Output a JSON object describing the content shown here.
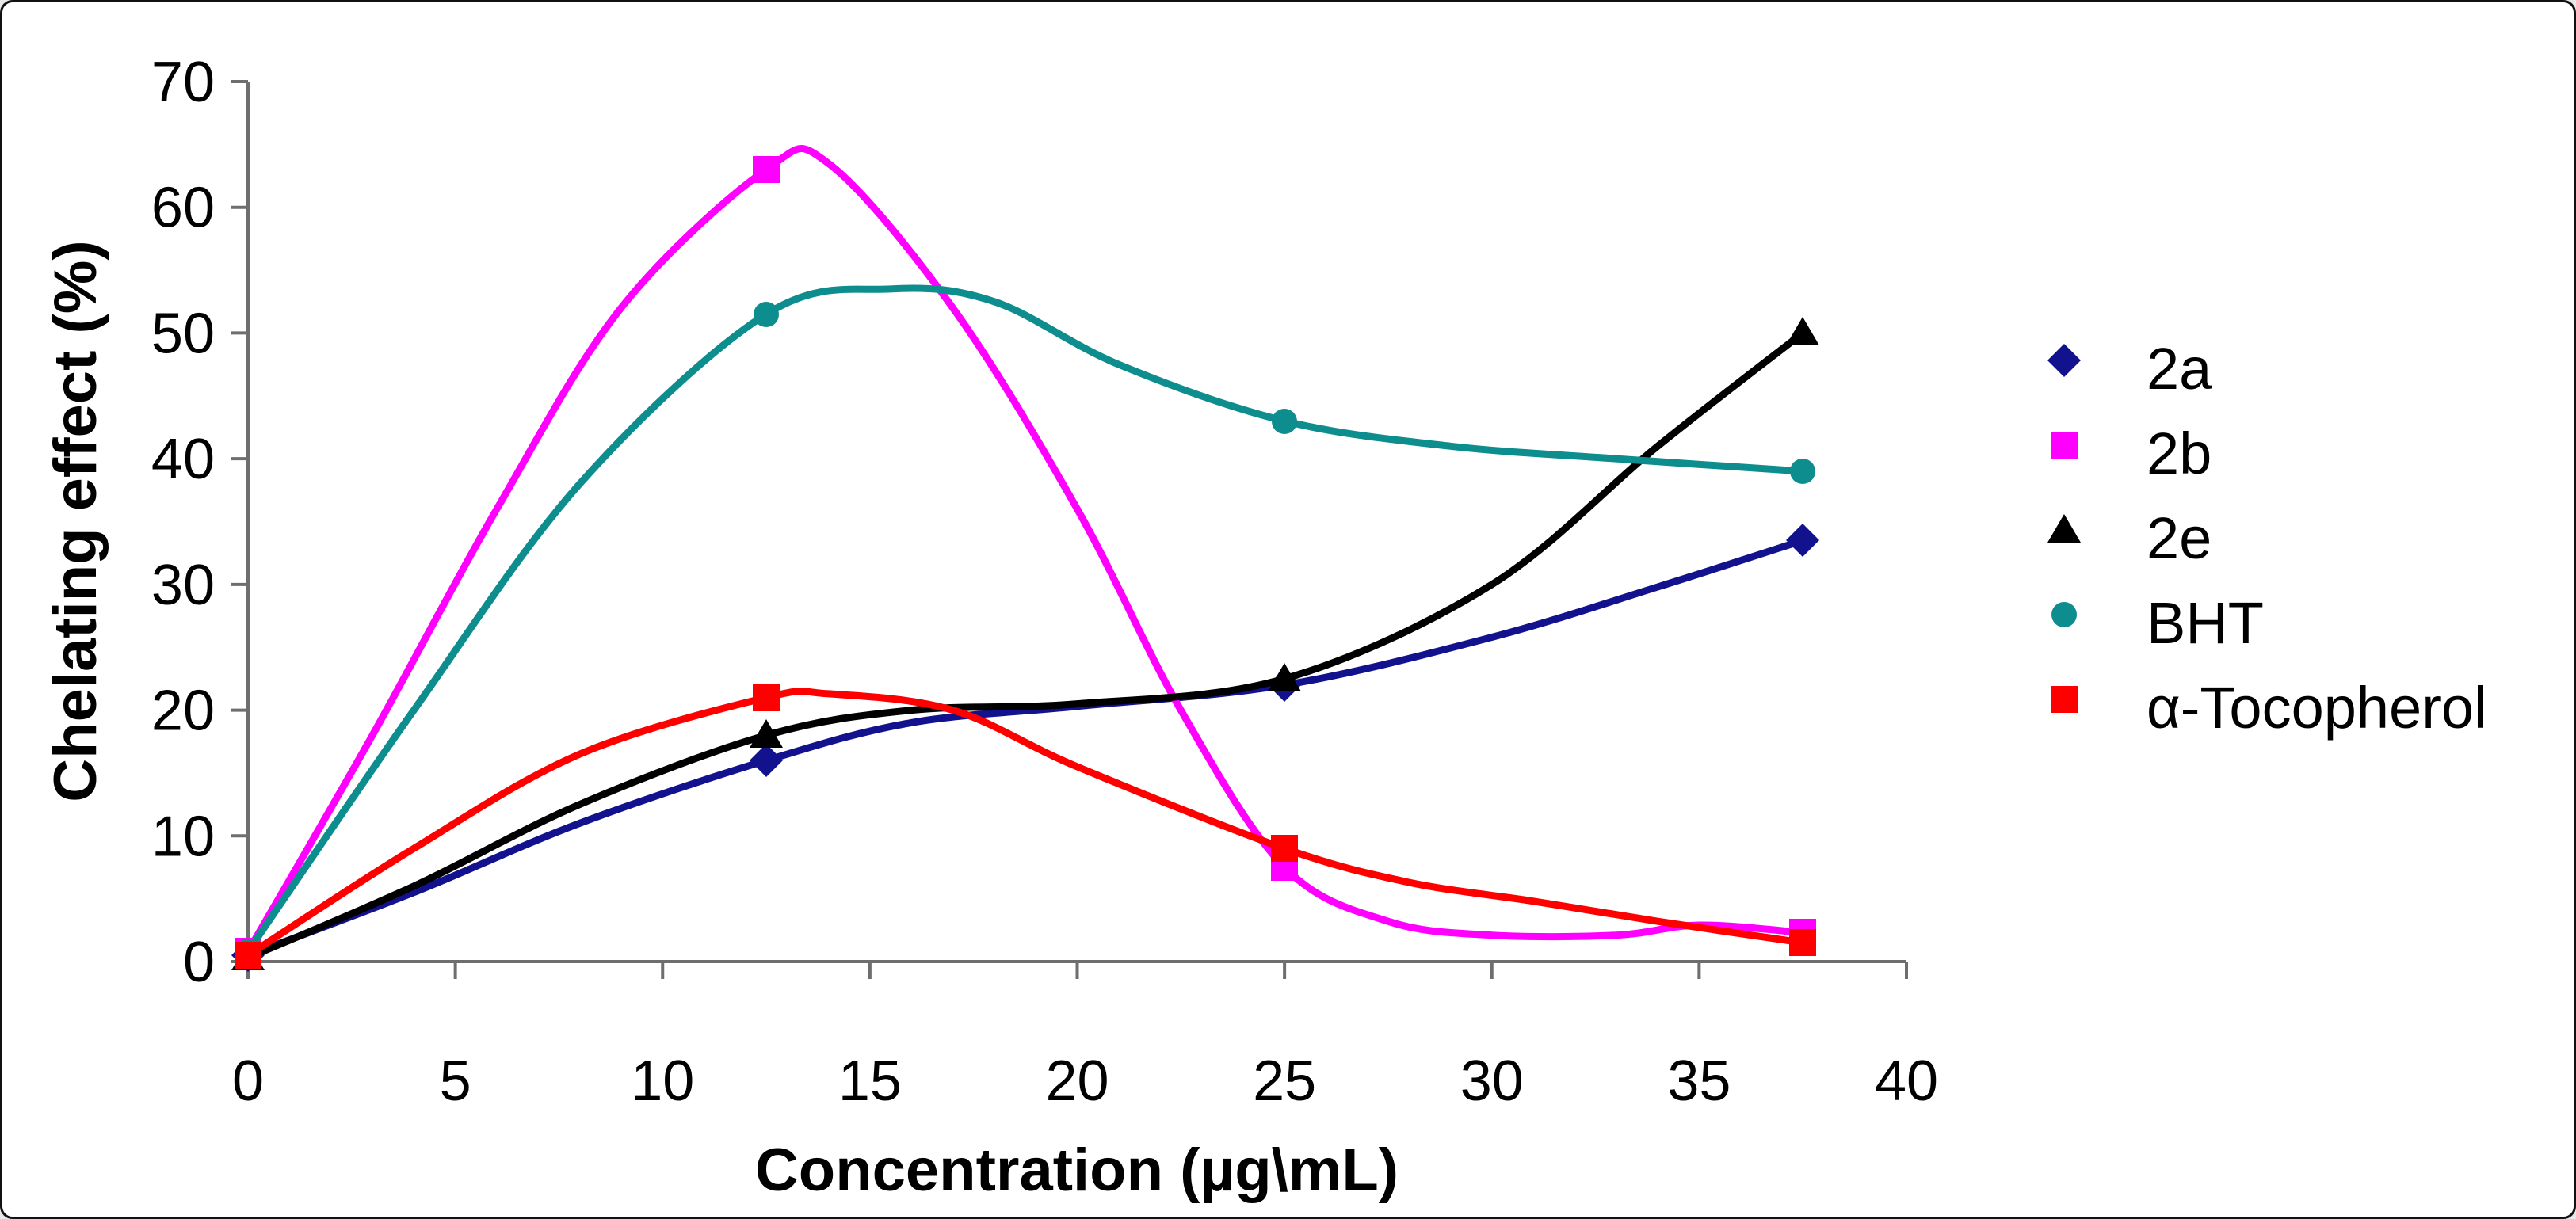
{
  "figure": {
    "background": "#ffffff",
    "border_color": "#111111",
    "axis_color": "#6e6e6e"
  },
  "chart_data": {
    "type": "line",
    "title": "",
    "xlabel": "Concentration (µg\\mL)",
    "ylabel": "Chelating effect (%)",
    "xlim": [
      0,
      40
    ],
    "ylim": [
      0,
      70
    ],
    "x_ticks": [
      0,
      5,
      10,
      15,
      20,
      25,
      30,
      35,
      40
    ],
    "y_ticks": [
      0,
      10,
      20,
      30,
      40,
      50,
      60,
      70
    ],
    "grid": false,
    "legend_position": "right",
    "series": [
      {
        "name": "2a",
        "color": "#12128E",
        "marker": "diamond",
        "x": [
          0,
          12.5,
          25,
          37.5
        ],
        "y": [
          0.5,
          16,
          22,
          33.5
        ],
        "curve": [
          [
            0,
            0.5
          ],
          [
            4,
            5.5
          ],
          [
            8,
            11
          ],
          [
            12.5,
            16
          ],
          [
            16,
            19
          ],
          [
            20,
            20.3
          ],
          [
            25,
            22
          ],
          [
            30,
            25.8
          ],
          [
            34,
            29.8
          ],
          [
            37.5,
            33.5
          ]
        ]
      },
      {
        "name": "2b",
        "color": "#FF00FF",
        "marker": "square",
        "x": [
          0,
          12.5,
          25,
          37.5
        ],
        "y": [
          0.8,
          63,
          7.5,
          2.3
        ],
        "curve": [
          [
            0,
            0.8
          ],
          [
            3,
            18
          ],
          [
            6,
            36
          ],
          [
            9,
            52
          ],
          [
            12.5,
            63
          ],
          [
            14,
            63.5
          ],
          [
            17,
            52
          ],
          [
            20,
            36
          ],
          [
            22.5,
            20
          ],
          [
            25,
            7.5
          ],
          [
            27.5,
            3.2
          ],
          [
            30,
            2.1
          ],
          [
            33,
            2.1
          ],
          [
            35,
            2.9
          ],
          [
            37.5,
            2.3
          ]
        ]
      },
      {
        "name": "2e",
        "color": "#000000",
        "marker": "triangle",
        "x": [
          0,
          12.5,
          25,
          37.5
        ],
        "y": [
          0.3,
          18,
          22.5,
          50
        ],
        "curve": [
          [
            0,
            0.3
          ],
          [
            4,
            6
          ],
          [
            8,
            12.5
          ],
          [
            12.5,
            18
          ],
          [
            16,
            20
          ],
          [
            20,
            20.5
          ],
          [
            25,
            22.5
          ],
          [
            30,
            30
          ],
          [
            34,
            41
          ],
          [
            37.5,
            50
          ]
        ]
      },
      {
        "name": "BHT",
        "color": "#0D8D8D",
        "marker": "circle",
        "x": [
          0,
          12.5,
          25,
          37.5
        ],
        "y": [
          0.8,
          51.5,
          43,
          39
        ],
        "curve": [
          [
            0,
            0.8
          ],
          [
            4,
            20
          ],
          [
            8,
            38
          ],
          [
            12.5,
            51.5
          ],
          [
            15.5,
            53.5
          ],
          [
            18,
            52.5
          ],
          [
            21,
            47.5
          ],
          [
            25,
            43
          ],
          [
            29,
            41
          ],
          [
            33,
            40
          ],
          [
            37.5,
            39
          ]
        ]
      },
      {
        "name": "α-Tocopherol",
        "color": "#FF0000",
        "marker": "square",
        "x": [
          0,
          12.5,
          25,
          37.5
        ],
        "y": [
          0.5,
          21,
          9,
          1.5
        ],
        "curve": [
          [
            0,
            0.5
          ],
          [
            4,
            9
          ],
          [
            8,
            16.5
          ],
          [
            12.5,
            21
          ],
          [
            14,
            21.3
          ],
          [
            17,
            20
          ],
          [
            20,
            15.5
          ],
          [
            25,
            9
          ],
          [
            28,
            6.3
          ],
          [
            31,
            4.8
          ],
          [
            34,
            3.2
          ],
          [
            37.5,
            1.5
          ]
        ]
      }
    ]
  }
}
